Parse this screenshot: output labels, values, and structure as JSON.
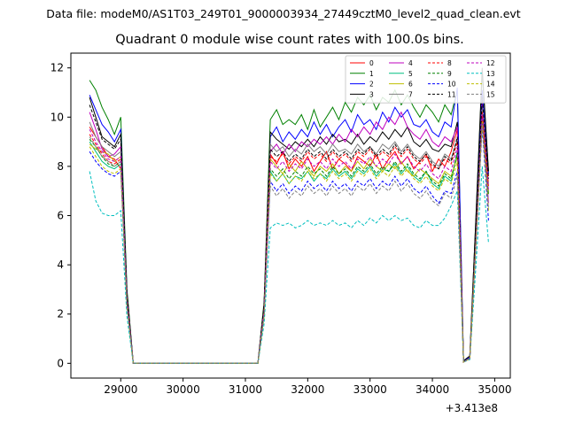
{
  "figure": {
    "suptitle": "Data file: modeM0/AS1T03_249T01_9000003934_27449cztM0_level2_quad_clean.evt",
    "title": "Quadrant 0 module wise count rates with 100.0s bins.",
    "x_offset_label": "+3.413e8"
  },
  "chart_data": {
    "type": "line",
    "title": "Quadrant 0 module wise count rates with 100.0s bins.",
    "xlabel": "",
    "ylabel": "",
    "x_offset": 341300000,
    "xlim": [
      28200,
      35250
    ],
    "ylim": [
      -0.6,
      12.6
    ],
    "xticks": [
      29000,
      30000,
      31000,
      32000,
      33000,
      34000,
      35000
    ],
    "xtick_labels": [
      "29000",
      "30000",
      "31000",
      "32000",
      "33000",
      "34000",
      "35000"
    ],
    "yticks": [
      0,
      2,
      4,
      6,
      8,
      10,
      12
    ],
    "ytick_labels": [
      "0",
      "2",
      "4",
      "6",
      "8",
      "10",
      "12"
    ],
    "grid": false,
    "legend_position": "top-right",
    "legend_columns": 4,
    "x": [
      28500,
      28600,
      28700,
      28800,
      28900,
      29000,
      29100,
      29200,
      29300,
      29400,
      29500,
      29600,
      29700,
      29800,
      29900,
      30000,
      30100,
      30200,
      30300,
      30400,
      30500,
      30600,
      30700,
      30800,
      30900,
      31000,
      31100,
      31200,
      31300,
      31400,
      31500,
      31600,
      31700,
      31800,
      31900,
      32000,
      32100,
      32200,
      32300,
      32400,
      32500,
      32600,
      32700,
      32800,
      32900,
      33000,
      33100,
      33200,
      33300,
      33400,
      33500,
      33600,
      33700,
      33800,
      33900,
      34000,
      34100,
      34200,
      34300,
      34400,
      34500,
      34600,
      34700,
      34800,
      34900
    ],
    "series": [
      {
        "name": "0",
        "color": "#ff0000",
        "dash": "solid",
        "values": [
          9.6,
          9.2,
          8.8,
          8.4,
          8.3,
          7.9,
          2.5,
          0,
          0,
          0,
          0,
          0,
          0,
          0,
          0,
          0,
          0,
          0,
          0,
          0,
          0,
          0,
          0,
          0,
          0,
          0,
          0,
          0,
          2.0,
          8.5,
          8.1,
          8.6,
          7.9,
          8.3,
          8.0,
          8.4,
          7.8,
          8.2,
          8.6,
          7.9,
          8.3,
          8.1,
          7.8,
          8.4,
          8.2,
          8.0,
          8.5,
          7.9,
          8.3,
          8.6,
          8.1,
          8.4,
          7.9,
          8.2,
          8.5,
          7.8,
          8.3,
          8.0,
          8.6,
          9.5,
          0.05,
          0.2,
          5.0,
          10.3,
          7.6
        ]
      },
      {
        "name": "1",
        "color": "#008000",
        "dash": "solid",
        "values": [
          11.5,
          11.1,
          10.4,
          9.9,
          9.3,
          10.0,
          3.0,
          0,
          0,
          0,
          0,
          0,
          0,
          0,
          0,
          0,
          0,
          0,
          0,
          0,
          0,
          0,
          0,
          0,
          0,
          0,
          0,
          0,
          2.5,
          9.9,
          10.3,
          9.7,
          9.9,
          9.7,
          10.1,
          9.5,
          10.3,
          9.6,
          10.0,
          10.4,
          9.9,
          10.6,
          10.2,
          10.8,
          10.5,
          10.9,
          10.3,
          10.8,
          10.6,
          11.1,
          10.5,
          10.9,
          10.4,
          10.0,
          10.5,
          10.2,
          9.8,
          10.5,
          10.1,
          11.1,
          0.1,
          0.3,
          6.0,
          11.8,
          7.8
        ]
      },
      {
        "name": "2",
        "color": "#0000ff",
        "dash": "solid",
        "values": [
          10.9,
          10.3,
          9.7,
          9.4,
          9.0,
          9.5,
          2.8,
          0,
          0,
          0,
          0,
          0,
          0,
          0,
          0,
          0,
          0,
          0,
          0,
          0,
          0,
          0,
          0,
          0,
          0,
          0,
          0,
          0,
          2.3,
          9.2,
          9.6,
          9.0,
          9.4,
          9.1,
          9.5,
          9.2,
          9.8,
          9.3,
          9.7,
          9.2,
          9.6,
          9.9,
          9.4,
          10.1,
          9.7,
          9.9,
          9.5,
          10.2,
          9.8,
          10.4,
          10.0,
          10.3,
          9.7,
          9.6,
          9.9,
          9.4,
          9.2,
          9.8,
          9.6,
          11.2,
          0.1,
          0.25,
          5.5,
          11.1,
          7.7
        ]
      },
      {
        "name": "3",
        "color": "#000000",
        "dash": "solid",
        "values": [
          10.8,
          10.0,
          9.2,
          9.0,
          8.8,
          9.3,
          2.9,
          0,
          0,
          0,
          0,
          0,
          0,
          0,
          0,
          0,
          0,
          0,
          0,
          0,
          0,
          0,
          0,
          0,
          0,
          0,
          0,
          0,
          2.4,
          9.4,
          9.1,
          8.9,
          8.7,
          9.0,
          8.8,
          9.1,
          8.8,
          9.2,
          8.9,
          9.3,
          9.0,
          9.1,
          8.9,
          9.3,
          8.9,
          9.2,
          9.0,
          9.4,
          9.1,
          9.5,
          9.2,
          9.6,
          9.0,
          8.8,
          9.1,
          8.7,
          8.6,
          8.9,
          8.8,
          9.8,
          0.1,
          0.3,
          6.0,
          12.0,
          7.8
        ]
      },
      {
        "name": "4",
        "color": "#bf00bf",
        "dash": "solid",
        "values": [
          10.2,
          9.5,
          8.7,
          8.4,
          8.5,
          8.8,
          2.6,
          0,
          0,
          0,
          0,
          0,
          0,
          0,
          0,
          0,
          0,
          0,
          0,
          0,
          0,
          0,
          0,
          0,
          0,
          0,
          0,
          0,
          2.2,
          8.6,
          8.9,
          8.5,
          8.9,
          8.6,
          9.0,
          8.8,
          9.1,
          8.9,
          9.2,
          8.9,
          9.3,
          9.0,
          9.5,
          9.2,
          9.6,
          9.3,
          9.8,
          9.5,
          10.0,
          9.7,
          10.2,
          9.6,
          9.3,
          9.1,
          9.5,
          9.0,
          8.8,
          9.2,
          9.0,
          9.6,
          0.05,
          0.2,
          5.2,
          10.6,
          6.5
        ]
      },
      {
        "name": "5",
        "color": "#00bf80",
        "dash": "solid",
        "values": [
          9.0,
          8.6,
          8.2,
          8.0,
          7.9,
          8.1,
          2.4,
          0,
          0,
          0,
          0,
          0,
          0,
          0,
          0,
          0,
          0,
          0,
          0,
          0,
          0,
          0,
          0,
          0,
          0,
          0,
          0,
          0,
          2.0,
          7.8,
          7.4,
          7.7,
          7.3,
          7.6,
          7.5,
          7.8,
          7.4,
          7.7,
          7.5,
          7.9,
          7.6,
          7.8,
          7.5,
          7.9,
          7.7,
          8.0,
          7.6,
          7.9,
          7.8,
          8.1,
          7.7,
          8.0,
          7.6,
          7.4,
          7.8,
          7.3,
          7.1,
          7.6,
          7.4,
          8.6,
          0.05,
          0.2,
          5.0,
          10.0,
          7.0
        ]
      },
      {
        "name": "6",
        "color": "#bfbf00",
        "dash": "solid",
        "values": [
          8.9,
          8.7,
          8.6,
          8.5,
          8.2,
          8.4,
          2.5,
          0,
          0,
          0,
          0,
          0,
          0,
          0,
          0,
          0,
          0,
          0,
          0,
          0,
          0,
          0,
          0,
          0,
          0,
          0,
          0,
          0,
          2.1,
          8.3,
          8.0,
          7.7,
          8.1,
          7.8,
          8.2,
          7.9,
          7.6,
          8.0,
          7.8,
          8.1,
          7.7,
          8.0,
          7.8,
          8.2,
          7.9,
          8.3,
          8.0,
          7.8,
          8.1,
          7.9,
          8.2,
          7.8,
          7.6,
          7.9,
          7.7,
          7.5,
          7.3,
          7.8,
          7.6,
          8.4,
          0.05,
          0.2,
          5.0,
          10.1,
          6.9
        ]
      },
      {
        "name": "7",
        "color": "#808080",
        "dash": "solid",
        "values": [
          9.8,
          9.2,
          8.8,
          8.6,
          8.4,
          8.6,
          2.6,
          0,
          0,
          0,
          0,
          0,
          0,
          0,
          0,
          0,
          0,
          0,
          0,
          0,
          0,
          0,
          0,
          0,
          0,
          0,
          0,
          0,
          2.2,
          8.9,
          8.6,
          8.8,
          8.4,
          8.7,
          8.5,
          8.9,
          8.6,
          8.8,
          8.5,
          8.9,
          8.6,
          8.7,
          8.5,
          8.9,
          8.6,
          8.8,
          8.5,
          8.9,
          8.7,
          9.0,
          8.6,
          8.9,
          8.5,
          8.3,
          8.6,
          8.2,
          8.0,
          8.5,
          8.3,
          9.1,
          0.05,
          0.2,
          5.2,
          10.4,
          7.3
        ]
      },
      {
        "name": "8",
        "color": "#ff0000",
        "dash": "dashed",
        "values": [
          9.3,
          8.9,
          8.5,
          8.2,
          8.1,
          8.3,
          2.5,
          0,
          0,
          0,
          0,
          0,
          0,
          0,
          0,
          0,
          0,
          0,
          0,
          0,
          0,
          0,
          0,
          0,
          0,
          0,
          0,
          0,
          2.1,
          8.4,
          8.2,
          8.5,
          8.1,
          8.4,
          8.2,
          8.6,
          8.3,
          8.5,
          8.2,
          8.6,
          8.3,
          8.5,
          8.2,
          8.6,
          8.4,
          8.7,
          8.3,
          8.6,
          8.4,
          8.8,
          8.4,
          8.7,
          8.3,
          8.1,
          8.4,
          8.0,
          7.9,
          8.3,
          8.1,
          9.0,
          0.05,
          0.2,
          5.0,
          10.2,
          7.2
        ]
      },
      {
        "name": "9",
        "color": "#008000",
        "dash": "dashed",
        "values": [
          9.1,
          8.8,
          8.4,
          8.1,
          8.0,
          8.2,
          2.4,
          0,
          0,
          0,
          0,
          0,
          0,
          0,
          0,
          0,
          0,
          0,
          0,
          0,
          0,
          0,
          0,
          0,
          0,
          0,
          0,
          0,
          2.0,
          7.9,
          7.6,
          7.9,
          7.5,
          7.8,
          7.6,
          8.0,
          7.7,
          7.9,
          7.6,
          8.0,
          7.7,
          7.9,
          7.6,
          8.0,
          7.8,
          8.1,
          7.7,
          8.0,
          7.8,
          8.2,
          7.8,
          8.1,
          7.7,
          7.5,
          7.8,
          7.4,
          7.2,
          7.7,
          7.5,
          8.5,
          0.05,
          0.2,
          5.0,
          10.0,
          6.8
        ]
      },
      {
        "name": "10",
        "color": "#0000ff",
        "dash": "dashed",
        "values": [
          8.6,
          8.2,
          7.9,
          7.7,
          7.6,
          7.8,
          2.3,
          0,
          0,
          0,
          0,
          0,
          0,
          0,
          0,
          0,
          0,
          0,
          0,
          0,
          0,
          0,
          0,
          0,
          0,
          0,
          0,
          0,
          1.9,
          7.4,
          7.0,
          7.3,
          6.9,
          7.2,
          7.0,
          7.4,
          7.1,
          7.3,
          7.0,
          7.4,
          7.1,
          7.3,
          7.0,
          7.4,
          7.2,
          7.5,
          7.1,
          7.4,
          7.2,
          7.6,
          7.2,
          7.5,
          7.1,
          6.9,
          7.2,
          6.8,
          6.5,
          7.0,
          6.9,
          7.8,
          0.05,
          0.2,
          4.8,
          9.6,
          5.8
        ]
      },
      {
        "name": "11",
        "color": "#000000",
        "dash": "dashed",
        "values": [
          10.5,
          9.8,
          9.1,
          8.9,
          8.7,
          9.1,
          2.8,
          0,
          0,
          0,
          0,
          0,
          0,
          0,
          0,
          0,
          0,
          0,
          0,
          0,
          0,
          0,
          0,
          0,
          0,
          0,
          0,
          0,
          2.4,
          8.7,
          8.4,
          8.6,
          8.2,
          8.5,
          8.3,
          8.7,
          8.4,
          8.6,
          8.3,
          8.7,
          8.4,
          8.6,
          8.3,
          8.7,
          8.5,
          8.8,
          8.4,
          8.7,
          8.5,
          8.9,
          8.5,
          8.8,
          8.4,
          8.2,
          8.5,
          8.1,
          7.9,
          8.4,
          8.2,
          9.2,
          0.05,
          0.2,
          5.3,
          10.8,
          7.5
        ]
      },
      {
        "name": "12",
        "color": "#bf00bf",
        "dash": "dashed",
        "values": [
          9.5,
          9.0,
          8.6,
          8.3,
          8.2,
          8.4,
          2.5,
          0,
          0,
          0,
          0,
          0,
          0,
          0,
          0,
          0,
          0,
          0,
          0,
          0,
          0,
          0,
          0,
          0,
          0,
          0,
          0,
          0,
          2.1,
          8.2,
          7.9,
          8.2,
          7.8,
          8.1,
          7.9,
          8.3,
          8.0,
          8.2,
          7.9,
          8.3,
          8.0,
          8.2,
          7.9,
          8.3,
          8.1,
          8.4,
          8.0,
          8.3,
          8.1,
          8.5,
          8.1,
          8.4,
          8.0,
          7.8,
          8.1,
          7.7,
          7.5,
          8.0,
          7.8,
          8.8,
          0.05,
          0.2,
          5.1,
          10.1,
          7.0
        ]
      },
      {
        "name": "13",
        "color": "#00bfbf",
        "dash": "dashed",
        "values": [
          7.8,
          6.6,
          6.1,
          6.0,
          6.0,
          6.2,
          1.9,
          0,
          0,
          0,
          0,
          0,
          0,
          0,
          0,
          0,
          0,
          0,
          0,
          0,
          0,
          0,
          0,
          0,
          0,
          0,
          0,
          0,
          1.6,
          5.5,
          5.7,
          5.6,
          5.7,
          5.5,
          5.6,
          5.8,
          5.6,
          5.7,
          5.6,
          5.8,
          5.6,
          5.7,
          5.5,
          5.8,
          5.6,
          5.9,
          5.7,
          6.0,
          5.8,
          6.0,
          5.8,
          5.9,
          5.6,
          5.5,
          5.8,
          5.6,
          5.6,
          5.9,
          6.4,
          7.0,
          0.05,
          0.15,
          4.0,
          8.0,
          4.9
        ]
      },
      {
        "name": "14",
        "color": "#bfbf00",
        "dash": "dashed",
        "values": [
          8.8,
          8.4,
          8.0,
          7.8,
          7.7,
          7.9,
          2.3,
          0,
          0,
          0,
          0,
          0,
          0,
          0,
          0,
          0,
          0,
          0,
          0,
          0,
          0,
          0,
          0,
          0,
          0,
          0,
          0,
          0,
          1.9,
          7.7,
          7.4,
          7.7,
          7.3,
          7.6,
          7.4,
          7.8,
          7.5,
          7.7,
          7.4,
          7.8,
          7.5,
          7.7,
          7.4,
          7.8,
          7.6,
          7.9,
          7.5,
          7.8,
          7.6,
          8.0,
          7.6,
          7.9,
          7.5,
          7.3,
          7.6,
          7.2,
          7.0,
          7.5,
          7.3,
          8.2,
          0.05,
          0.2,
          4.9,
          9.8,
          6.2
        ]
      },
      {
        "name": "15",
        "color": "#808080",
        "dash": "dashed",
        "values": [
          9.2,
          8.8,
          8.4,
          8.2,
          8.0,
          8.2,
          2.4,
          0,
          0,
          0,
          0,
          0,
          0,
          0,
          0,
          0,
          0,
          0,
          0,
          0,
          0,
          0,
          0,
          0,
          0,
          0,
          0,
          0,
          2.0,
          7.2,
          6.8,
          7.1,
          6.7,
          7.0,
          6.8,
          7.2,
          6.9,
          7.1,
          6.8,
          7.2,
          6.9,
          7.1,
          6.8,
          7.2,
          7.0,
          7.3,
          6.9,
          7.2,
          7.0,
          7.4,
          7.0,
          7.3,
          6.9,
          6.7,
          7.0,
          6.6,
          6.4,
          6.9,
          6.7,
          7.6,
          0.05,
          0.2,
          4.9,
          9.7,
          6.3
        ]
      }
    ]
  }
}
